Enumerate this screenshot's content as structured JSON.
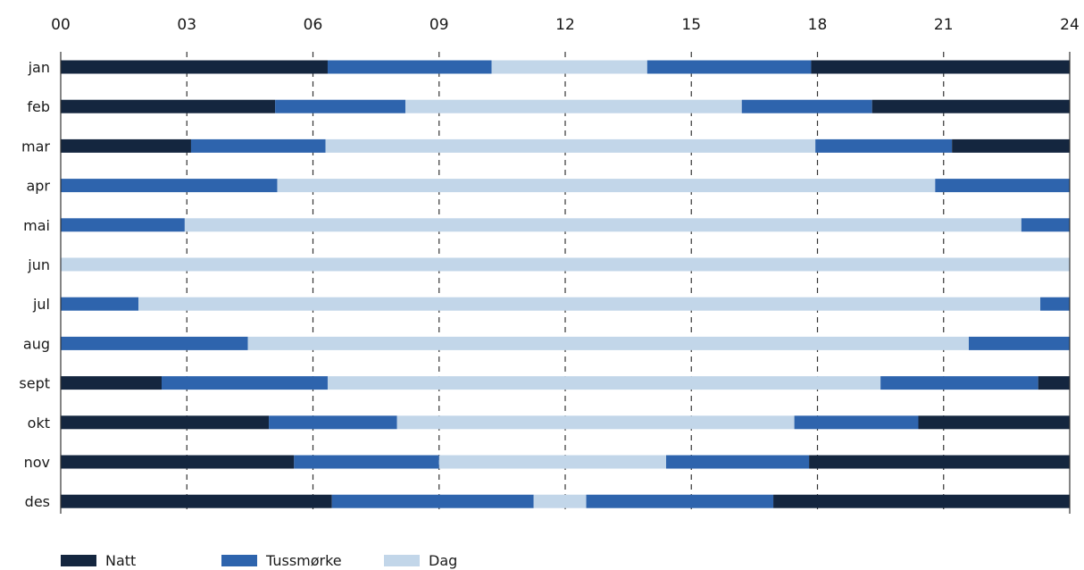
{
  "chart_data": {
    "type": "bar",
    "orientation": "horizontal",
    "stacked": true,
    "xlim": [
      0,
      24
    ],
    "x_ticks": [
      "00",
      "03",
      "06",
      "09",
      "12",
      "15",
      "18",
      "21",
      "24"
    ],
    "x_tick_values": [
      0,
      3,
      6,
      9,
      12,
      15,
      18,
      21,
      24
    ],
    "grid": "dashed vertical lines at 03, 06, 09, 12, 15, 18, 21",
    "legend_position": "bottom-left",
    "categories": [
      "jan",
      "feb",
      "mar",
      "apr",
      "mai",
      "jun",
      "jul",
      "aug",
      "sept",
      "okt",
      "nov",
      "des"
    ],
    "series": [
      {
        "name": "Natt",
        "color": "#14263f"
      },
      {
        "name": "Tussmørke",
        "color": "#2e64ad"
      },
      {
        "name": "Dag",
        "color": "#c2d6e9"
      }
    ],
    "segments": [
      [
        [
          "Natt",
          0,
          6.35
        ],
        [
          "Tussmørke",
          6.35,
          10.25
        ],
        [
          "Dag",
          10.25,
          13.95
        ],
        [
          "Tussmørke",
          13.95,
          17.85
        ],
        [
          "Natt",
          17.85,
          24
        ]
      ],
      [
        [
          "Natt",
          0,
          5.1
        ],
        [
          "Tussmørke",
          5.1,
          8.2
        ],
        [
          "Dag",
          8.2,
          16.2
        ],
        [
          "Tussmørke",
          16.2,
          19.3
        ],
        [
          "Natt",
          19.3,
          24
        ]
      ],
      [
        [
          "Natt",
          0,
          3.1
        ],
        [
          "Tussmørke",
          3.1,
          6.3
        ],
        [
          "Dag",
          6.3,
          17.95
        ],
        [
          "Tussmørke",
          17.95,
          21.2
        ],
        [
          "Natt",
          21.2,
          24
        ]
      ],
      [
        [
          "Tussmørke",
          0,
          5.15
        ],
        [
          "Dag",
          5.15,
          20.8
        ],
        [
          "Tussmørke",
          20.8,
          24
        ]
      ],
      [
        [
          "Tussmørke",
          0,
          2.95
        ],
        [
          "Dag",
          2.95,
          22.85
        ],
        [
          "Tussmørke",
          22.85,
          24
        ]
      ],
      [
        [
          "Dag",
          0,
          24
        ]
      ],
      [
        [
          "Tussmørke",
          0,
          1.85
        ],
        [
          "Dag",
          1.85,
          23.3
        ],
        [
          "Tussmørke",
          23.3,
          24
        ]
      ],
      [
        [
          "Tussmørke",
          0,
          4.45
        ],
        [
          "Dag",
          4.45,
          21.6
        ],
        [
          "Tussmørke",
          21.6,
          24
        ]
      ],
      [
        [
          "Natt",
          0,
          2.4
        ],
        [
          "Tussmørke",
          2.4,
          6.35
        ],
        [
          "Dag",
          6.35,
          19.5
        ],
        [
          "Tussmørke",
          19.5,
          23.25
        ],
        [
          "Natt",
          23.25,
          24
        ]
      ],
      [
        [
          "Natt",
          0,
          4.95
        ],
        [
          "Tussmørke",
          4.95,
          8.0
        ],
        [
          "Dag",
          8.0,
          17.45
        ],
        [
          "Tussmørke",
          17.45,
          20.4
        ],
        [
          "Natt",
          20.4,
          24
        ]
      ],
      [
        [
          "Natt",
          0,
          5.55
        ],
        [
          "Tussmørke",
          5.55,
          9.0
        ],
        [
          "Dag",
          9.0,
          14.4
        ],
        [
          "Tussmørke",
          14.4,
          17.8
        ],
        [
          "Natt",
          17.8,
          24
        ]
      ],
      [
        [
          "Natt",
          0,
          6.45
        ],
        [
          "Tussmørke",
          6.45,
          11.25
        ],
        [
          "Dag",
          11.25,
          12.5
        ],
        [
          "Tussmørke",
          12.5,
          16.95
        ],
        [
          "Natt",
          16.95,
          24
        ]
      ]
    ],
    "legend": [
      {
        "label": "Natt",
        "color": "#14263f"
      },
      {
        "label": "Tussmørke",
        "color": "#2e64ad"
      },
      {
        "label": "Dag",
        "color": "#c2d6e9"
      }
    ]
  }
}
